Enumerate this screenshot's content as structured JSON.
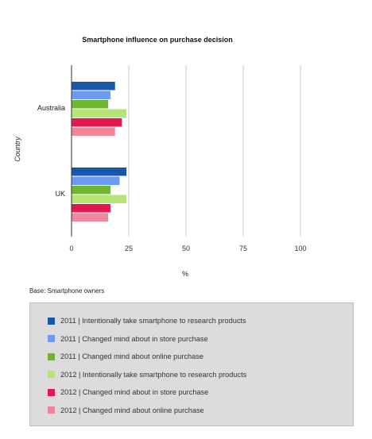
{
  "chart_data": {
    "type": "bar",
    "orientation": "horizontal",
    "title": "Smartphone influence on purchase decision",
    "xlabel": "%",
    "ylabel": "Country",
    "categories": [
      "Australia",
      "UK"
    ],
    "xlim": [
      0,
      100
    ],
    "xticks": [
      0,
      25,
      50,
      75,
      100
    ],
    "grid": true,
    "legend_position": "bottom",
    "series": [
      {
        "name": "2011 | Intentionally take smartphone to research products",
        "color": "#1a57a6",
        "values": [
          19,
          24
        ]
      },
      {
        "name": "2011 | Changed mind about in store purchase",
        "color": "#6b9bf2",
        "values": [
          17,
          21
        ]
      },
      {
        "name": "2011 | Changed mind about online purchase",
        "color": "#6fb52e",
        "values": [
          16,
          17
        ]
      },
      {
        "name": "2012 | Intentionally take smartphone to research products",
        "color": "#b7e377",
        "values": [
          24,
          24
        ]
      },
      {
        "name": "2012 | Changed mind about in store purchase",
        "color": "#e0184e",
        "values": [
          22,
          17
        ]
      },
      {
        "name": "2012 | Changed mind about online purchase",
        "color": "#f0859e",
        "values": [
          19,
          16
        ]
      }
    ]
  },
  "base_note": "Base: Smartphone owners"
}
